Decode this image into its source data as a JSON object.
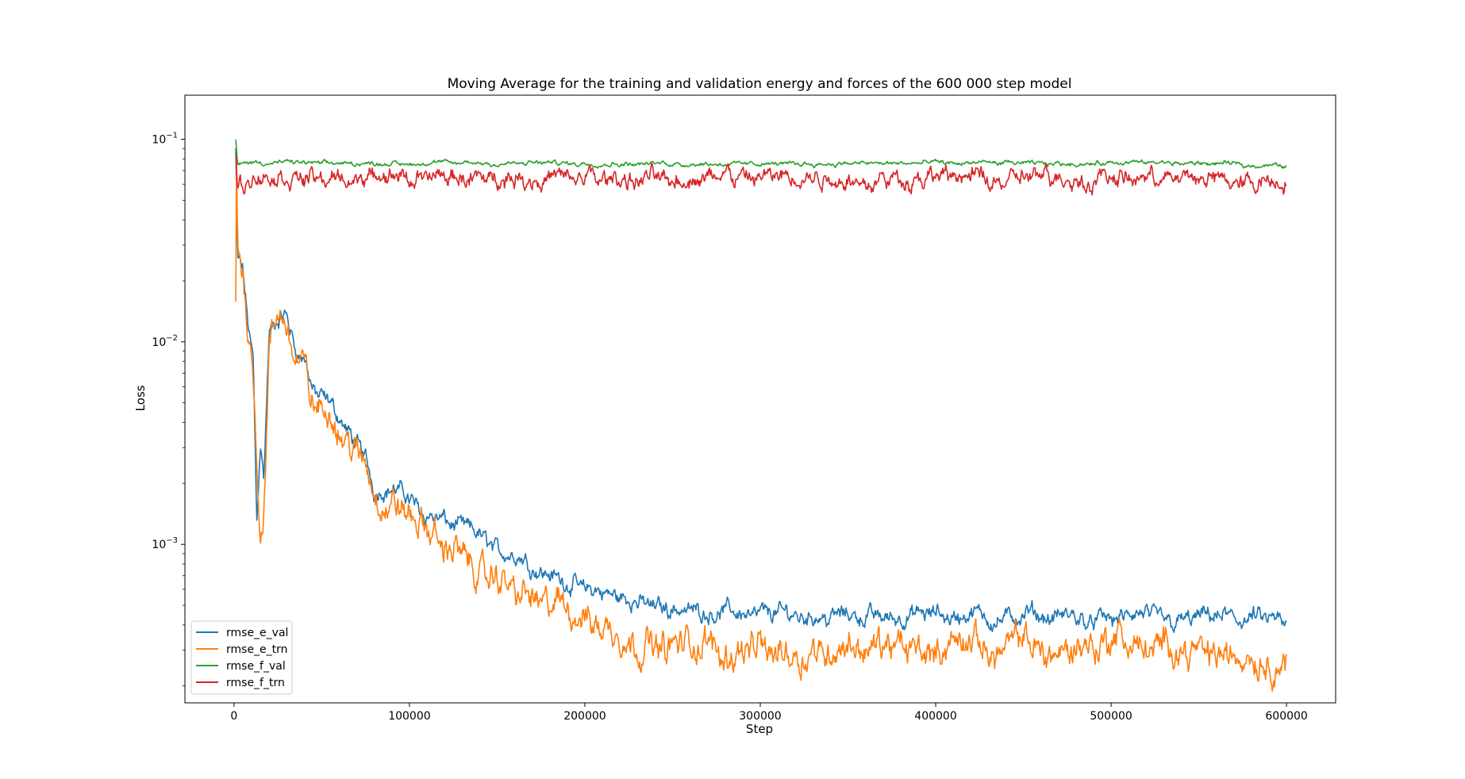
{
  "chart_data": {
    "type": "line",
    "title": "Moving Average for the training and validation energy and forces of the 600 000 step model",
    "xlabel": "Step",
    "ylabel": "Loss",
    "yscale": "log",
    "xlim": [
      -28000,
      628000
    ],
    "ylim": [
      0.000165,
      0.165
    ],
    "grid": false,
    "legend_position": "lower-left",
    "x_ticks": [
      0,
      100000,
      200000,
      300000,
      400000,
      500000,
      600000
    ],
    "x_tick_labels": [
      "0",
      "100000",
      "200000",
      "300000",
      "400000",
      "500000",
      "600000"
    ],
    "y_ticks": [
      0.001,
      0.01,
      0.1
    ],
    "y_tick_labels": [
      {
        "base": "10",
        "exp": "−3"
      },
      {
        "base": "10",
        "exp": "−2"
      },
      {
        "base": "10",
        "exp": "−1"
      }
    ],
    "series": [
      {
        "name": "rmse_e_val",
        "color": "#1f77b4",
        "x": [
          1000,
          2000,
          5000,
          8000,
          11000,
          13000,
          15000,
          17000,
          20000,
          25000,
          30000,
          35000,
          40000,
          45000,
          50000,
          60000,
          70000,
          75000,
          80000,
          90000,
          100000,
          110000,
          120000,
          130000,
          140000,
          150000,
          160000,
          170000,
          180000,
          190000,
          200000,
          210000,
          220000,
          230000,
          240000,
          250000,
          275000,
          300000,
          325000,
          350000,
          375000,
          400000,
          425000,
          450000,
          475000,
          500000,
          525000,
          550000,
          575000,
          590000,
          600000
        ],
        "y": [
          0.09,
          0.025,
          0.022,
          0.012,
          0.008,
          0.0013,
          0.0035,
          0.0022,
          0.011,
          0.012,
          0.013,
          0.0092,
          0.0082,
          0.0058,
          0.0052,
          0.0042,
          0.003,
          0.0027,
          0.0019,
          0.0019,
          0.0017,
          0.00145,
          0.0013,
          0.0012,
          0.0011,
          0.00095,
          0.0009,
          0.0008,
          0.00072,
          0.00065,
          0.0006,
          0.00057,
          0.00054,
          0.00052,
          0.0005,
          0.00049,
          0.00047,
          0.00046,
          0.00045,
          0.00045,
          0.00044,
          0.00044,
          0.00044,
          0.00043,
          0.00043,
          0.00043,
          0.00043,
          0.00043,
          0.00043,
          0.00042,
          0.00038
        ]
      },
      {
        "name": "rmse_e_trn",
        "color": "#ff7f0e",
        "x": [
          1000,
          1500,
          2000,
          5000,
          8000,
          11000,
          13000,
          15000,
          17000,
          20000,
          25000,
          30000,
          35000,
          40000,
          45000,
          50000,
          60000,
          70000,
          75000,
          80000,
          90000,
          100000,
          110000,
          120000,
          130000,
          140000,
          150000,
          160000,
          170000,
          180000,
          190000,
          200000,
          210000,
          220000,
          230000,
          240000,
          250000,
          275000,
          300000,
          325000,
          350000,
          375000,
          400000,
          425000,
          450000,
          475000,
          500000,
          525000,
          550000,
          575000,
          590000,
          600000
        ],
        "y": [
          0.015,
          0.11,
          0.03,
          0.021,
          0.012,
          0.008,
          0.003,
          0.0012,
          0.0015,
          0.009,
          0.012,
          0.012,
          0.0085,
          0.0075,
          0.005,
          0.0045,
          0.0038,
          0.0028,
          0.0024,
          0.0017,
          0.0015,
          0.0014,
          0.0011,
          0.001,
          0.0009,
          0.0007,
          0.00065,
          0.0006,
          0.00055,
          0.0005,
          0.00045,
          0.00043,
          0.0004,
          0.00035,
          0.00033,
          0.00032,
          0.00032,
          0.0003,
          0.00031,
          0.0003,
          0.00031,
          0.0003,
          0.00031,
          0.00031,
          0.00031,
          0.0003,
          0.00034,
          0.0003,
          0.00031,
          0.00028,
          0.00026,
          0.00025
        ]
      },
      {
        "name": "rmse_f_val",
        "color": "#2ca02c",
        "x": [
          1000,
          2000,
          5000,
          10000,
          50000,
          100000,
          150000,
          200000,
          250000,
          300000,
          350000,
          400000,
          450000,
          500000,
          550000,
          600000
        ],
        "y": [
          0.1,
          0.075,
          0.076,
          0.077,
          0.076,
          0.076,
          0.076,
          0.076,
          0.076,
          0.076,
          0.076,
          0.076,
          0.076,
          0.076,
          0.076,
          0.074
        ]
      },
      {
        "name": "rmse_f_trn",
        "color": "#d62728",
        "x": [
          1000,
          2000,
          5000,
          10000,
          50000,
          100000,
          150000,
          200000,
          250000,
          300000,
          350000,
          400000,
          450000,
          500000,
          550000,
          600000
        ],
        "y": [
          0.085,
          0.06,
          0.062,
          0.064,
          0.064,
          0.064,
          0.064,
          0.064,
          0.064,
          0.064,
          0.064,
          0.064,
          0.064,
          0.064,
          0.064,
          0.062
        ]
      }
    ]
  }
}
